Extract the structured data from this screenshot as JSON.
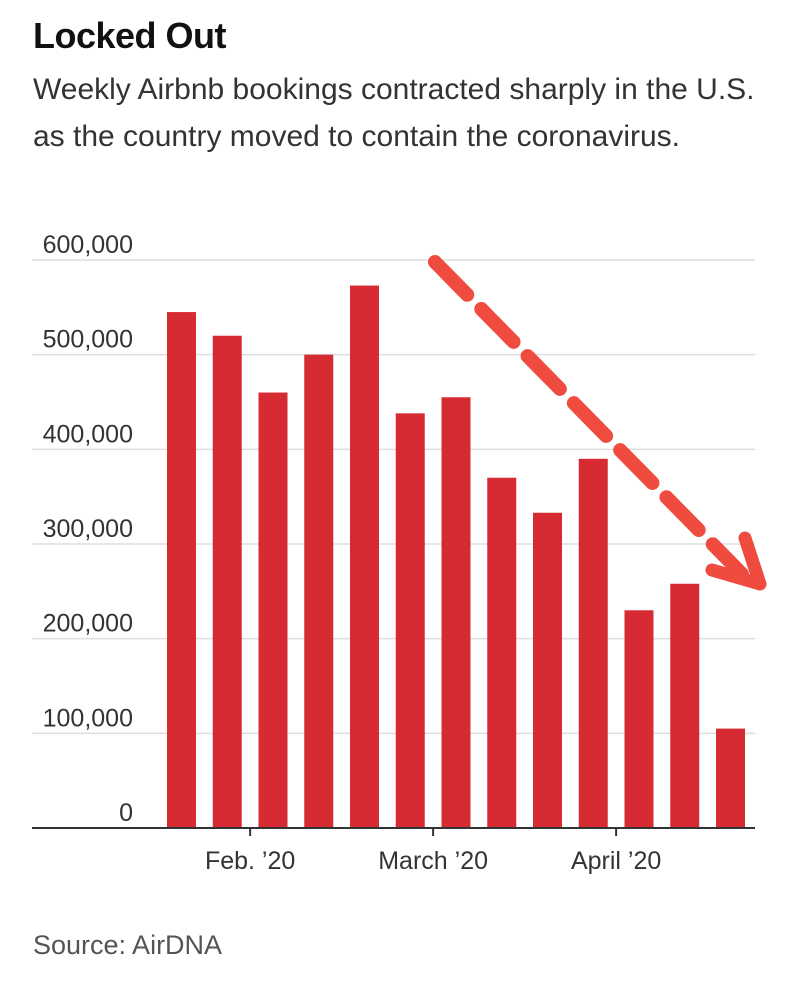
{
  "title": "Locked Out",
  "subtitle": "Weekly Airbnb bookings contracted sharply in the U.S. as the country moved to contain the coronavirus.",
  "source": "Source: AirDNA",
  "colors": {
    "bar": "#d62b33",
    "arrow": "#ef4b3f",
    "grid": "#dddddd",
    "axis": "#333333"
  },
  "chart_data": {
    "type": "bar",
    "title": "Locked Out",
    "xlabel": "",
    "ylabel": "",
    "ylim": [
      0,
      600000
    ],
    "yticks": [
      0,
      100000,
      200000,
      300000,
      400000,
      500000,
      600000
    ],
    "ytick_labels": [
      "0",
      "100,000",
      "200,000",
      "300,000",
      "400,000",
      "500,000",
      "600,000"
    ],
    "x_labels": [
      {
        "label": "Feb. ’20",
        "after_bar": 1
      },
      {
        "label": "March ’20",
        "after_bar": 5
      },
      {
        "label": "April ’20",
        "after_bar": 9
      }
    ],
    "series": [
      {
        "name": "Weekly Airbnb bookings",
        "values": [
          545000,
          520000,
          460000,
          500000,
          573000,
          438000,
          455000,
          370000,
          333000,
          390000,
          230000,
          258000,
          105000
        ]
      }
    ],
    "annotations": [
      {
        "type": "dashed-arrow",
        "direction": "down-right",
        "meaning": "decline"
      }
    ]
  }
}
